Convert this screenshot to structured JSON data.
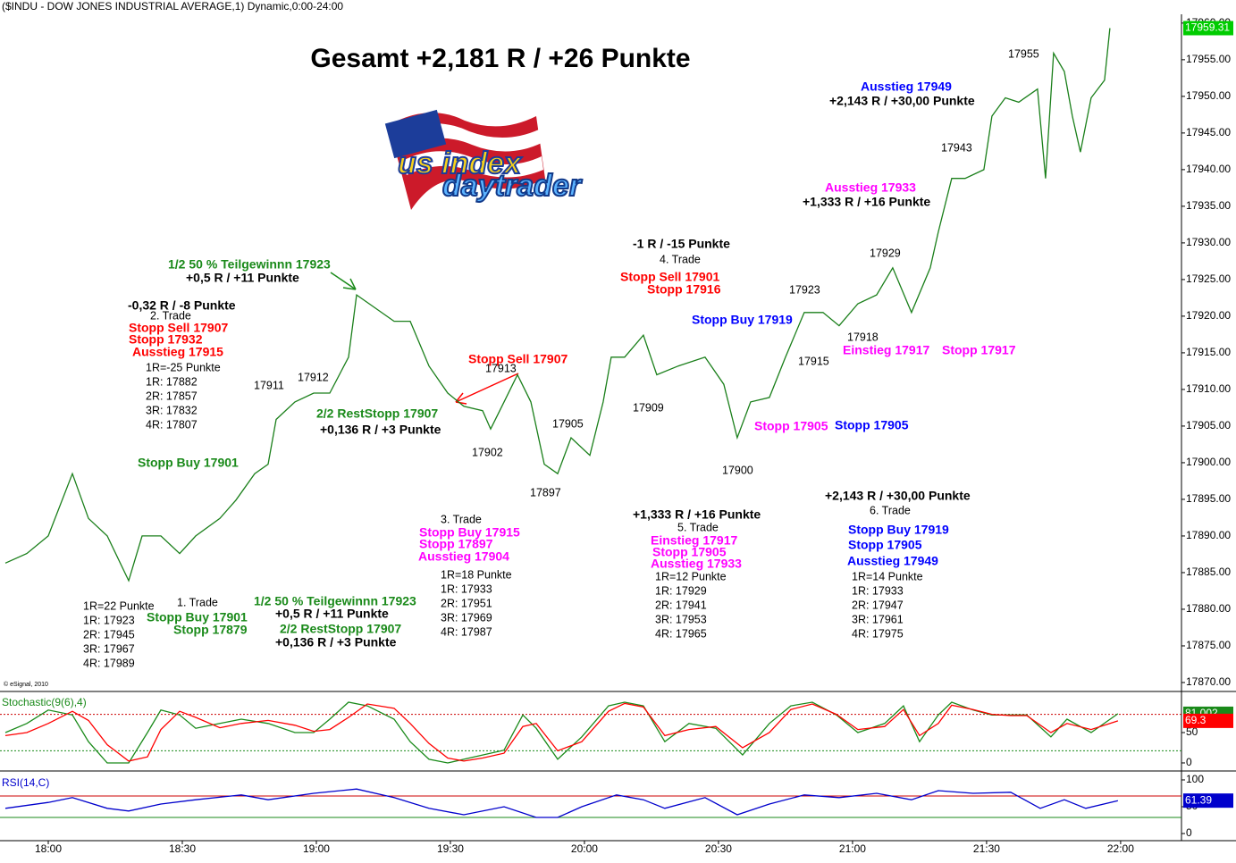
{
  "chart_data": [
    {
      "type": "line",
      "title": "Gesamt +2,181 R / +26 Punkte",
      "subtitle": "($INDU - DOW JONES INDUSTRIAL AVERAGE,1) Dynamic,0:00-24:00",
      "credit": "© eSignal, 2010",
      "logo": [
        "us index",
        "daytrader"
      ],
      "xlim": [
        17.82,
        22.227
      ],
      "ylim": [
        17868.9,
        17961.2
      ],
      "xticks": [
        {
          "value": 18,
          "label": "18:00"
        },
        {
          "value": 18.5,
          "label": "18:30"
        },
        {
          "value": 19,
          "label": "19:00"
        },
        {
          "value": 19.5,
          "label": "19:30"
        },
        {
          "value": 20,
          "label": "20:00"
        },
        {
          "value": 20.5,
          "label": "20:30"
        },
        {
          "value": 21,
          "label": "21:00"
        },
        {
          "value": 21.5,
          "label": "21:30"
        },
        {
          "value": 22,
          "label": "22:00"
        }
      ],
      "yticks": [
        {
          "value": 17870,
          "label": "17870.00"
        },
        {
          "value": 17875,
          "label": "17875.00"
        },
        {
          "value": 17880,
          "label": "17880.00"
        },
        {
          "value": 17885,
          "label": "17885.00"
        },
        {
          "value": 17890,
          "label": "17890.00"
        },
        {
          "value": 17895,
          "label": "17895.00"
        },
        {
          "value": 17900,
          "label": "17900.00"
        },
        {
          "value": 17905,
          "label": "17905.00"
        },
        {
          "value": 17910,
          "label": "17910.00"
        },
        {
          "value": 17915,
          "label": "17915.00"
        },
        {
          "value": 17920,
          "label": "17920.00"
        },
        {
          "value": 17925,
          "label": "17925.00"
        },
        {
          "value": 17930,
          "label": "17930.00"
        },
        {
          "value": 17935,
          "label": "17935.00"
        },
        {
          "value": 17940,
          "label": "17940.00"
        },
        {
          "value": 17945,
          "label": "17945.00"
        },
        {
          "value": 17950,
          "label": "17950.00"
        },
        {
          "value": 17955,
          "label": "17955.00"
        },
        {
          "value": 17960,
          "label": "17960.00"
        }
      ],
      "x": [
        17.84,
        17.92,
        18.0,
        18.09,
        18.15,
        18.22,
        18.3,
        18.35,
        18.42,
        18.49,
        18.55,
        18.64,
        18.7,
        18.77,
        18.82,
        18.85,
        18.92,
        18.99,
        19.05,
        19.12,
        19.15,
        19.22,
        19.29,
        19.35,
        19.42,
        19.49,
        19.55,
        19.62,
        19.65,
        19.7,
        19.75,
        19.8,
        19.85,
        19.9,
        19.95,
        20.02,
        20.07,
        20.1,
        20.15,
        20.22,
        20.27,
        20.35,
        20.45,
        20.52,
        20.57,
        20.62,
        20.69,
        20.75,
        20.82,
        20.89,
        20.95,
        21.02,
        21.09,
        21.15,
        21.22,
        21.29,
        21.32,
        21.37,
        21.42,
        21.49,
        21.52,
        21.57,
        21.62,
        21.69,
        21.72,
        21.75,
        21.79,
        21.82,
        21.85,
        21.89,
        21.94,
        21.96
      ],
      "series": [
        {
          "color": "#1a7f1a",
          "values": [
            17886.3,
            17887.6,
            17890.0,
            17898.5,
            17892.4,
            17890.0,
            17883.9,
            17890.0,
            17890.0,
            17887.6,
            17890.0,
            17892.4,
            17894.9,
            17898.5,
            17899.8,
            17905.9,
            17908.3,
            17909.5,
            17909.5,
            17914.4,
            17922.9,
            17921.1,
            17919.3,
            17919.3,
            17913.2,
            17909.5,
            17907.7,
            17907.1,
            17904.6,
            17908.3,
            17912.0,
            17908.3,
            17899.8,
            17898.5,
            17903.4,
            17901.0,
            17908.3,
            17914.4,
            17914.4,
            17917.4,
            17912.0,
            17913.2,
            17914.4,
            17910.7,
            17903.4,
            17908.3,
            17908.9,
            17914.4,
            17920.5,
            17920.5,
            17918.7,
            17921.7,
            17922.9,
            17926.6,
            17920.5,
            17926.6,
            17931.5,
            17938.8,
            17938.8,
            17940.0,
            17947.3,
            17949.8,
            17949.2,
            17951.0,
            17938.8,
            17955.9,
            17953.4,
            17947.3,
            17942.4,
            17949.8,
            17952.2,
            17959.31
          ]
        }
      ],
      "last_box_color": "#00cc00",
      "annotations": [
        {
          "text": "1/2 50 % Teilgewinnn 17923",
          "color": "#1a8a1a"
        },
        {
          "text": "+0,5 R / +11 Punkte",
          "color": "#000000"
        },
        {
          "text": "-0,32 R / -8 Punkte",
          "color": "#000000"
        },
        {
          "text": "2. Trade",
          "color": "#000000"
        },
        {
          "text": "Stopp Sell 17907",
          "color": "#ff0000"
        },
        {
          "text": "Stopp 17932",
          "color": "#ff0000"
        },
        {
          "text": "Ausstieg 17915",
          "color": "#ff0000"
        },
        {
          "text": "1R=-25 Punkte",
          "color": "#000000"
        },
        {
          "text": "1R: 17882",
          "color": "#000000"
        },
        {
          "text": "2R: 17857",
          "color": "#000000"
        },
        {
          "text": "3R: 17832",
          "color": "#000000"
        },
        {
          "text": "4R: 17807",
          "color": "#000000"
        },
        {
          "text": "17911",
          "color": "#000000"
        },
        {
          "text": "17912",
          "color": "#000000"
        },
        {
          "text": "2/2 RestStopp 17907",
          "color": "#1a8a1a"
        },
        {
          "text": "+0,136 R / +3 Punkte",
          "color": "#000000"
        },
        {
          "text": "Stopp Buy 17901",
          "color": "#1a8a1a"
        },
        {
          "text": "1R=22 Punkte",
          "color": "#000000"
        },
        {
          "text": "1R: 17923",
          "color": "#000000"
        },
        {
          "text": "2R: 17945",
          "color": "#000000"
        },
        {
          "text": "3R: 17967",
          "color": "#000000"
        },
        {
          "text": "4R: 17989",
          "color": "#000000"
        },
        {
          "text": "1. Trade",
          "color": "#000000"
        },
        {
          "text": "Stopp Buy 17901",
          "color": "#1a8a1a"
        },
        {
          "text": "Stopp 17879",
          "color": "#1a8a1a"
        },
        {
          "text": "1/2 50 % Teilgewinnn 17923",
          "color": "#1a8a1a"
        },
        {
          "text": "+0,5 R / +11 Punkte",
          "color": "#000000"
        },
        {
          "text": "2/2 RestStopp 17907",
          "color": "#1a8a1a"
        },
        {
          "text": "+0,136 R / +3 Punkte",
          "color": "#000000"
        },
        {
          "text": "Stopp Sell 17907",
          "color": "#ff0000"
        },
        {
          "text": "17913",
          "color": "#000000"
        },
        {
          "text": "17902",
          "color": "#000000"
        },
        {
          "text": "17905",
          "color": "#000000"
        },
        {
          "text": "17897",
          "color": "#000000"
        },
        {
          "text": "3. Trade",
          "color": "#000000"
        },
        {
          "text": "Stopp Buy 17915",
          "color": "#ff00ff"
        },
        {
          "text": "Stopp 17897",
          "color": "#ff00ff"
        },
        {
          "text": "Ausstieg 17904",
          "color": "#ff00ff"
        },
        {
          "text": "1R=18 Punkte",
          "color": "#000000"
        },
        {
          "text": "1R: 17933",
          "color": "#000000"
        },
        {
          "text": "2R: 17951",
          "color": "#000000"
        },
        {
          "text": "3R: 17969",
          "color": "#000000"
        },
        {
          "text": "4R: 17987",
          "color": "#000000"
        },
        {
          "text": "-1 R / -15 Punkte",
          "color": "#000000"
        },
        {
          "text": "4. Trade",
          "color": "#000000"
        },
        {
          "text": "Stopp Sell 17901",
          "color": "#ff0000"
        },
        {
          "text": "Stopp 17916",
          "color": "#ff0000"
        },
        {
          "text": "Stopp Buy 17919",
          "color": "#0000ff"
        },
        {
          "text": "17909",
          "color": "#000000"
        },
        {
          "text": "17900",
          "color": "#000000"
        },
        {
          "text": "+1,333 R / +16 Punkte",
          "color": "#000000"
        },
        {
          "text": "5. Trade",
          "color": "#000000"
        },
        {
          "text": "Einstieg 17917",
          "color": "#ff00ff"
        },
        {
          "text": "Stopp 17905",
          "color": "#ff00ff"
        },
        {
          "text": "Ausstieg 17933",
          "color": "#ff00ff"
        },
        {
          "text": "1R=12 Punkte",
          "color": "#000000"
        },
        {
          "text": "1R: 17929",
          "color": "#000000"
        },
        {
          "text": "2R: 17941",
          "color": "#000000"
        },
        {
          "text": "3R: 17953",
          "color": "#000000"
        },
        {
          "text": "4R: 17965",
          "color": "#000000"
        },
        {
          "text": "17923",
          "color": "#000000"
        },
        {
          "text": "17915",
          "color": "#000000"
        },
        {
          "text": "17918",
          "color": "#000000"
        },
        {
          "text": "17929",
          "color": "#000000"
        },
        {
          "text": "Einstieg 17917",
          "color": "#ff00ff"
        },
        {
          "text": "Stopp 17917",
          "color": "#ff00ff"
        },
        {
          "text": "Stopp 17905",
          "color": "#ff00ff"
        },
        {
          "text": "Stopp 17905",
          "color": "#0000ff"
        },
        {
          "text": "Ausstieg 17933",
          "color": "#ff00ff"
        },
        {
          "text": "+1,333 R / +16 Punkte",
          "color": "#000000"
        },
        {
          "text": "17943",
          "color": "#000000"
        },
        {
          "text": "17955",
          "color": "#000000"
        },
        {
          "text": "Ausstieg 17949",
          "color": "#0000ff"
        },
        {
          "text": "+2,143 R / +30,00 Punkte",
          "color": "#000000"
        },
        {
          "text": "+2,143 R / +30,00 Punkte",
          "color": "#000000"
        },
        {
          "text": "6. Trade",
          "color": "#000000"
        },
        {
          "text": "Stopp Buy 17919",
          "color": "#0000ff"
        },
        {
          "text": "Stopp 17905",
          "color": "#0000ff"
        },
        {
          "text": "Ausstieg 17949",
          "color": "#0000ff"
        },
        {
          "text": "1R=14 Punkte",
          "color": "#000000"
        },
        {
          "text": "1R: 17933",
          "color": "#000000"
        },
        {
          "text": "2R: 17947",
          "color": "#000000"
        },
        {
          "text": "3R: 17961",
          "color": "#000000"
        },
        {
          "text": "4R: 17975",
          "color": "#000000"
        }
      ]
    },
    {
      "type": "line",
      "title": "Stochastic(9(6),4)",
      "title_color": "#1a8a1a",
      "xlim": [
        17.82,
        22.227
      ],
      "ylim": [
        -11.8,
        116.2
      ],
      "yticks": [
        0,
        50
      ],
      "levels": [
        20,
        80
      ],
      "level_colors": [
        "#1a8a1a",
        "#cc0000"
      ],
      "x": [
        17.84,
        17.92,
        18.0,
        18.09,
        18.15,
        18.22,
        18.3,
        18.37,
        18.42,
        18.49,
        18.55,
        18.64,
        18.72,
        18.82,
        18.92,
        18.99,
        19.05,
        19.12,
        19.19,
        19.29,
        19.35,
        19.42,
        19.49,
        19.55,
        19.62,
        19.7,
        19.77,
        19.82,
        19.9,
        19.99,
        20.09,
        20.15,
        20.22,
        20.3,
        20.39,
        20.49,
        20.59,
        20.69,
        20.77,
        20.85,
        20.94,
        21.02,
        21.12,
        21.19,
        21.25,
        21.32,
        21.37,
        21.45,
        21.52,
        21.59,
        21.65,
        21.74,
        21.8,
        21.89,
        21.99
      ],
      "series": [
        {
          "color": "#1a8a1a",
          "values": [
            50,
            65,
            87,
            79,
            35,
            0,
            0,
            50,
            87,
            79,
            57,
            65,
            72,
            65,
            50,
            50,
            72,
            100,
            94,
            72,
            35,
            6,
            0,
            6,
            13,
            21,
            79,
            57,
            6,
            43,
            94,
            100,
            94,
            35,
            65,
            57,
            13,
            65,
            94,
            100,
            79,
            50,
            65,
            94,
            35,
            79,
            100,
            87,
            79,
            79,
            79,
            43,
            72,
            50,
            81.002
          ]
        },
        {
          "color": "#ff0000",
          "values": [
            45,
            50,
            65,
            85,
            70,
            30,
            3,
            10,
            55,
            85,
            75,
            58,
            65,
            70,
            62,
            52,
            55,
            75,
            97,
            90,
            65,
            32,
            8,
            3,
            8,
            16,
            60,
            65,
            20,
            35,
            85,
            98,
            92,
            45,
            55,
            60,
            25,
            50,
            88,
            97,
            80,
            55,
            60,
            88,
            45,
            65,
            95,
            88,
            80,
            78,
            78,
            50,
            65,
            55,
            69.3
          ]
        }
      ]
    },
    {
      "type": "line",
      "title": "RSI(14,C)",
      "title_color": "#0000cc",
      "xlim": [
        17.82,
        22.227
      ],
      "ylim": [
        -13.3,
        113.3
      ],
      "yticks": [
        0,
        50,
        100
      ],
      "levels": [
        30,
        70
      ],
      "level_colors": [
        "#1a8a1a",
        "#cc0000"
      ],
      "x": [
        17.84,
        18.0,
        18.09,
        18.22,
        18.3,
        18.42,
        18.55,
        18.72,
        18.82,
        18.99,
        19.15,
        19.29,
        19.42,
        19.55,
        19.7,
        19.82,
        19.9,
        19.99,
        20.12,
        20.22,
        20.3,
        20.45,
        20.57,
        20.69,
        20.82,
        20.95,
        21.09,
        21.22,
        21.32,
        21.45,
        21.59,
        21.7,
        21.79,
        21.87,
        21.99
      ],
      "series": [
        {
          "color": "#0000cc",
          "values": [
            47,
            58,
            67,
            47,
            42,
            55,
            63,
            72,
            63,
            75,
            83,
            67,
            47,
            35,
            50,
            30,
            30,
            50,
            72,
            63,
            47,
            67,
            35,
            55,
            72,
            67,
            75,
            63,
            80,
            75,
            77,
            47,
            63,
            47,
            61.39
          ]
        }
      ]
    }
  ]
}
